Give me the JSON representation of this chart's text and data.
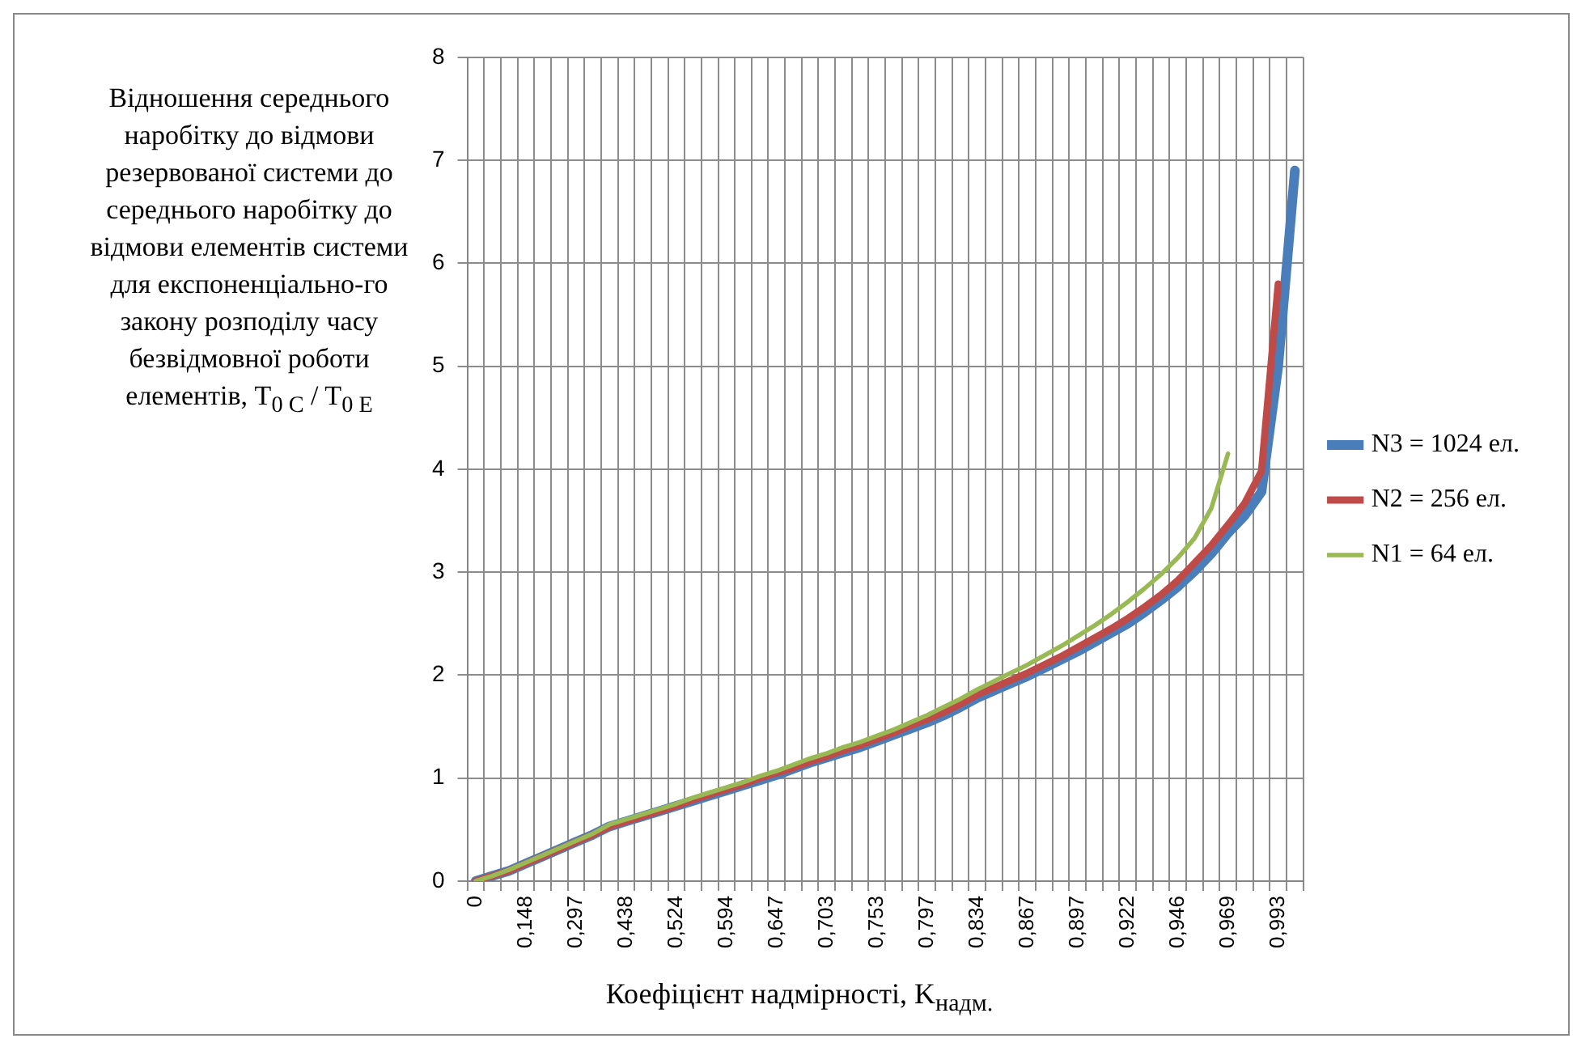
{
  "chart_data": {
    "type": "line",
    "xlabel": "Коефіцієнт надмірності, K$_{надм.}$",
    "ylabel": "Відношення середнього наробітку до відмови резервованої системи до середнього наробітку до відмови елементів системи для експоненціально-го закону розподілу часу безвідмовної роботи елементів, T$_{0 C}$ / T$_{0 E}$",
    "categories": [
      "0",
      null,
      null,
      "0,148",
      null,
      null,
      "0,297",
      null,
      null,
      "0,438",
      null,
      null,
      "0,524",
      null,
      null,
      "0,594",
      null,
      null,
      "0,647",
      null,
      null,
      "0,703",
      null,
      null,
      "0,753",
      null,
      null,
      "0,797",
      null,
      null,
      "0,834",
      null,
      null,
      "0,867",
      null,
      null,
      "0,897",
      null,
      null,
      "0,922",
      null,
      null,
      "0,946",
      null,
      null,
      "0,969",
      null,
      null,
      "0,993",
      null
    ],
    "series": [
      {
        "name": "N3 = 1024 ел.",
        "color": "#4a7ebb",
        "values": [
          0,
          0.05,
          0.1,
          0.17,
          0.24,
          0.31,
          0.38,
          0.45,
          0.53,
          0.58,
          0.63,
          0.68,
          0.73,
          0.78,
          0.83,
          0.88,
          0.93,
          0.98,
          1.03,
          1.09,
          1.15,
          1.2,
          1.25,
          1.3,
          1.36,
          1.42,
          1.48,
          1.54,
          1.61,
          1.69,
          1.78,
          1.85,
          1.92,
          1.99,
          2.07,
          2.15,
          2.23,
          2.32,
          2.41,
          2.5,
          2.61,
          2.73,
          2.86,
          3.01,
          3.18,
          3.38,
          3.55,
          3.78,
          5.0,
          6.9
        ]
      },
      {
        "name": "N2 = 256 ел.",
        "color": "#be4b48",
        "values": [
          0,
          0.05,
          0.1,
          0.17,
          0.24,
          0.31,
          0.38,
          0.45,
          0.53,
          0.58,
          0.63,
          0.68,
          0.73,
          0.79,
          0.84,
          0.89,
          0.94,
          1.0,
          1.05,
          1.1,
          1.16,
          1.21,
          1.27,
          1.32,
          1.38,
          1.44,
          1.51,
          1.57,
          1.64,
          1.72,
          1.81,
          1.88,
          1.95,
          2.02,
          2.1,
          2.18,
          2.27,
          2.36,
          2.45,
          2.55,
          2.66,
          2.78,
          2.92,
          3.09,
          3.26,
          3.46,
          3.67,
          3.98,
          5.8,
          null
        ]
      },
      {
        "name": "N1 = 64 ел.",
        "color": "#98b954",
        "values": [
          0,
          0.05,
          0.11,
          0.18,
          0.25,
          0.32,
          0.39,
          0.46,
          0.55,
          0.6,
          0.65,
          0.7,
          0.75,
          0.81,
          0.86,
          0.91,
          0.96,
          1.02,
          1.07,
          1.13,
          1.19,
          1.24,
          1.3,
          1.35,
          1.41,
          1.47,
          1.54,
          1.61,
          1.69,
          1.77,
          1.86,
          1.94,
          2.02,
          2.1,
          2.19,
          2.28,
          2.38,
          2.48,
          2.59,
          2.71,
          2.84,
          2.98,
          3.14,
          3.33,
          3.62,
          4.15,
          null,
          null,
          null,
          null
        ]
      }
    ],
    "ylim": [
      0,
      8
    ],
    "yticks": [
      0,
      1,
      2,
      3,
      4,
      5,
      6,
      7,
      8
    ],
    "grid": true,
    "legend": "right",
    "marker": "none",
    "line_style": "solid"
  }
}
